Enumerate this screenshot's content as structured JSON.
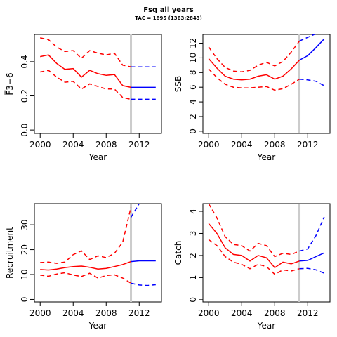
{
  "title": "Fsq all years",
  "subtitle": "TAC = 1895 (1363;2843)",
  "colors": {
    "historic": "#ff0000",
    "forecast": "#0000ff",
    "divider": "#cccccc"
  },
  "chart_data": [
    {
      "type": "line",
      "panel": "top-left",
      "xlabel": "Year",
      "ylabel": "F̅3−6",
      "xlim": [
        1999.3,
        2014.7
      ],
      "ylim": [
        -0.02,
        0.56
      ],
      "xticks": [
        2000,
        2004,
        2008,
        2012
      ],
      "yticks": [
        0.0,
        0.2,
        0.4
      ],
      "divider_x": 2011,
      "series": [
        {
          "part": "historic",
          "style": "solid",
          "x": [
            2000,
            2001,
            2002,
            2003,
            2004,
            2005,
            2006,
            2007,
            2008,
            2009,
            2010,
            2011
          ],
          "y": [
            0.43,
            0.44,
            0.39,
            0.355,
            0.36,
            0.31,
            0.35,
            0.33,
            0.32,
            0.325,
            0.26,
            0.25
          ]
        },
        {
          "part": "historic",
          "style": "dashed",
          "x": [
            2000,
            2001,
            2002,
            2003,
            2004,
            2005,
            2006,
            2007,
            2008,
            2009,
            2010,
            2011
          ],
          "y": [
            0.54,
            0.53,
            0.485,
            0.46,
            0.465,
            0.42,
            0.465,
            0.45,
            0.44,
            0.45,
            0.38,
            0.37
          ]
        },
        {
          "part": "historic",
          "style": "dashed",
          "x": [
            2000,
            2001,
            2002,
            2003,
            2004,
            2005,
            2006,
            2007,
            2008,
            2009,
            2010,
            2011
          ],
          "y": [
            0.34,
            0.35,
            0.31,
            0.28,
            0.285,
            0.24,
            0.27,
            0.255,
            0.24,
            0.24,
            0.19,
            0.18
          ]
        },
        {
          "part": "forecast",
          "style": "solid",
          "x": [
            2011,
            2014
          ],
          "y": [
            0.25,
            0.25
          ]
        },
        {
          "part": "forecast",
          "style": "dashed",
          "x": [
            2011,
            2014
          ],
          "y": [
            0.37,
            0.37
          ]
        },
        {
          "part": "forecast",
          "style": "dashed",
          "x": [
            2011,
            2014
          ],
          "y": [
            0.18,
            0.18
          ]
        }
      ]
    },
    {
      "type": "line",
      "panel": "top-right",
      "xlabel": "Year",
      "ylabel": "SSB",
      "xlim": [
        1999.3,
        2014.7
      ],
      "ylim": [
        -0.3,
        13.2
      ],
      "xticks": [
        2000,
        2004,
        2008,
        2012
      ],
      "yticks": [
        0,
        2,
        4,
        6,
        8,
        10,
        12
      ],
      "divider_x": 2011,
      "series": [
        {
          "part": "historic",
          "style": "solid",
          "x": [
            2000,
            2001,
            2002,
            2003,
            2004,
            2005,
            2006,
            2007,
            2008,
            2009,
            2010,
            2011
          ],
          "y": [
            9.9,
            8.6,
            7.5,
            7.1,
            7.0,
            7.1,
            7.5,
            7.7,
            7.1,
            7.5,
            8.5,
            9.7
          ]
        },
        {
          "part": "historic",
          "style": "dashed",
          "x": [
            2000,
            2001,
            2002,
            2003,
            2004,
            2005,
            2006,
            2007,
            2008,
            2009,
            2010,
            2011
          ],
          "y": [
            11.5,
            9.9,
            8.7,
            8.2,
            8.1,
            8.3,
            9.0,
            9.4,
            8.9,
            9.5,
            10.8,
            12.3
          ]
        },
        {
          "part": "historic",
          "style": "dashed",
          "x": [
            2000,
            2001,
            2002,
            2003,
            2004,
            2005,
            2006,
            2007,
            2008,
            2009,
            2010,
            2011
          ],
          "y": [
            8.5,
            7.3,
            6.4,
            6.0,
            5.9,
            5.9,
            6.0,
            6.1,
            5.6,
            5.8,
            6.4,
            7.1
          ]
        },
        {
          "part": "forecast",
          "style": "solid",
          "x": [
            2011,
            2012,
            2013,
            2014
          ],
          "y": [
            9.7,
            10.3,
            11.4,
            12.6
          ]
        },
        {
          "part": "forecast",
          "style": "dashed",
          "x": [
            2011,
            2012,
            2013,
            2014
          ],
          "y": [
            12.3,
            12.8,
            13.3,
            13.8
          ]
        },
        {
          "part": "forecast",
          "style": "dashed",
          "x": [
            2011,
            2012,
            2013,
            2014
          ],
          "y": [
            7.1,
            7.0,
            6.8,
            6.2
          ]
        }
      ]
    },
    {
      "type": "line",
      "panel": "bottom-left",
      "xlabel": "Year",
      "ylabel": "Recruitment",
      "xlim": [
        1999.3,
        2014.7
      ],
      "ylim": [
        -1,
        38.5
      ],
      "xticks": [
        2000,
        2004,
        2008,
        2012
      ],
      "yticks": [
        0,
        10,
        20,
        30
      ],
      "divider_x": 2011,
      "series": [
        {
          "part": "historic",
          "style": "solid",
          "x": [
            2000,
            2001,
            2002,
            2003,
            2004,
            2005,
            2006,
            2007,
            2008,
            2009,
            2010,
            2011
          ],
          "y": [
            12,
            11.8,
            12.2,
            12.8,
            13.2,
            13.4,
            12.9,
            12.2,
            12.5,
            13.2,
            14,
            15.2
          ]
        },
        {
          "part": "historic",
          "style": "dashed",
          "x": [
            2000,
            2001,
            2002,
            2003,
            2004,
            2005,
            2006,
            2007,
            2008,
            2009,
            2010,
            2011
          ],
          "y": [
            14.8,
            15,
            14.5,
            15,
            18,
            19.5,
            16,
            17.5,
            16.8,
            18.5,
            23,
            37
          ]
        },
        {
          "part": "historic",
          "style": "dashed",
          "x": [
            2000,
            2001,
            2002,
            2003,
            2004,
            2005,
            2006,
            2007,
            2008,
            2009,
            2010,
            2011
          ],
          "y": [
            9.8,
            9.3,
            10.2,
            10.7,
            9.8,
            9.2,
            10.5,
            8.6,
            9.6,
            9.9,
            8.6,
            6.5
          ]
        },
        {
          "part": "forecast",
          "style": "solid",
          "x": [
            2011,
            2012,
            2013,
            2014
          ],
          "y": [
            15.2,
            15.5,
            15.5,
            15.5
          ]
        },
        {
          "part": "forecast",
          "style": "dashed",
          "x": [
            2011,
            2012,
            2013,
            2014
          ],
          "y": [
            33,
            38.5,
            40,
            41
          ]
        },
        {
          "part": "forecast",
          "style": "dashed",
          "x": [
            2011,
            2012,
            2013,
            2014
          ],
          "y": [
            6.5,
            5.8,
            5.6,
            5.9
          ]
        }
      ]
    },
    {
      "type": "line",
      "panel": "bottom-right",
      "xlabel": "Year",
      "ylabel": "Catch",
      "xlim": [
        1999.3,
        2014.7
      ],
      "ylim": [
        -0.1,
        4.35
      ],
      "xticks": [
        2000,
        2004,
        2008,
        2012
      ],
      "yticks": [
        0,
        1,
        2,
        3,
        4
      ],
      "divider_x": 2011,
      "series": [
        {
          "part": "historic",
          "style": "solid",
          "x": [
            2000,
            2001,
            2002,
            2003,
            2004,
            2005,
            2006,
            2007,
            2008,
            2009,
            2010,
            2011
          ],
          "y": [
            3.45,
            3.0,
            2.35,
            2.05,
            2.0,
            1.75,
            2.0,
            1.9,
            1.45,
            1.7,
            1.62,
            1.75
          ]
        },
        {
          "part": "historic",
          "style": "dashed",
          "x": [
            2000,
            2001,
            2002,
            2003,
            2004,
            2005,
            2006,
            2007,
            2008,
            2009,
            2010,
            2011
          ],
          "y": [
            4.35,
            3.7,
            2.85,
            2.5,
            2.45,
            2.2,
            2.55,
            2.45,
            1.95,
            2.1,
            2.05,
            2.2
          ]
        },
        {
          "part": "historic",
          "style": "dashed",
          "x": [
            2000,
            2001,
            2002,
            2003,
            2004,
            2005,
            2006,
            2007,
            2008,
            2009,
            2010,
            2011
          ],
          "y": [
            2.72,
            2.45,
            1.95,
            1.7,
            1.6,
            1.4,
            1.6,
            1.5,
            1.15,
            1.35,
            1.3,
            1.4
          ]
        },
        {
          "part": "forecast",
          "style": "solid",
          "x": [
            2011,
            2012,
            2013,
            2014
          ],
          "y": [
            1.75,
            1.78,
            1.95,
            2.12
          ]
        },
        {
          "part": "forecast",
          "style": "dashed",
          "x": [
            2011,
            2012,
            2013,
            2014
          ],
          "y": [
            2.2,
            2.3,
            2.9,
            3.75
          ]
        },
        {
          "part": "forecast",
          "style": "dashed",
          "x": [
            2011,
            2012,
            2013,
            2014
          ],
          "y": [
            1.4,
            1.42,
            1.35,
            1.2
          ]
        }
      ]
    }
  ]
}
